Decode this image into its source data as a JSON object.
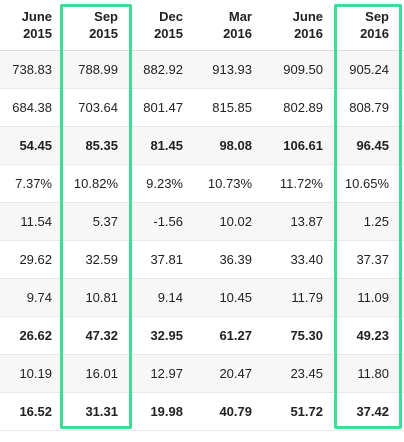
{
  "table": {
    "columns": [
      {
        "month": "June",
        "year": "2015"
      },
      {
        "month": "Sep",
        "year": "2015"
      },
      {
        "month": "Dec",
        "year": "2015"
      },
      {
        "month": "Mar",
        "year": "2016"
      },
      {
        "month": "June",
        "year": "2016"
      },
      {
        "month": "Sep",
        "year": "2016"
      }
    ],
    "rows": [
      {
        "bold": false,
        "cells": [
          "738.83",
          "788.99",
          "882.92",
          "913.93",
          "909.50",
          "905.24"
        ]
      },
      {
        "bold": false,
        "cells": [
          "684.38",
          "703.64",
          "801.47",
          "815.85",
          "802.89",
          "808.79"
        ]
      },
      {
        "bold": true,
        "cells": [
          "54.45",
          "85.35",
          "81.45",
          "98.08",
          "106.61",
          "96.45"
        ]
      },
      {
        "bold": false,
        "cells": [
          "7.37%",
          "10.82%",
          "9.23%",
          "10.73%",
          "11.72%",
          "10.65%"
        ]
      },
      {
        "bold": false,
        "cells": [
          "11.54",
          "5.37",
          "-1.56",
          "10.02",
          "13.87",
          "1.25"
        ]
      },
      {
        "bold": false,
        "cells": [
          "29.62",
          "32.59",
          "37.81",
          "36.39",
          "33.40",
          "37.37"
        ]
      },
      {
        "bold": false,
        "cells": [
          "9.74",
          "10.81",
          "9.14",
          "10.45",
          "11.79",
          "11.09"
        ]
      },
      {
        "bold": true,
        "cells": [
          "26.62",
          "47.32",
          "32.95",
          "61.27",
          "75.30",
          "49.23"
        ]
      },
      {
        "bold": false,
        "cells": [
          "10.19",
          "16.01",
          "12.97",
          "20.47",
          "23.45",
          "11.80"
        ]
      },
      {
        "bold": true,
        "cells": [
          "16.52",
          "31.31",
          "19.98",
          "40.79",
          "51.72",
          "37.42"
        ]
      }
    ]
  },
  "highlight_color": "#3ddc97",
  "highlighted_columns": [
    "Sep 2015",
    "Sep 2016"
  ]
}
